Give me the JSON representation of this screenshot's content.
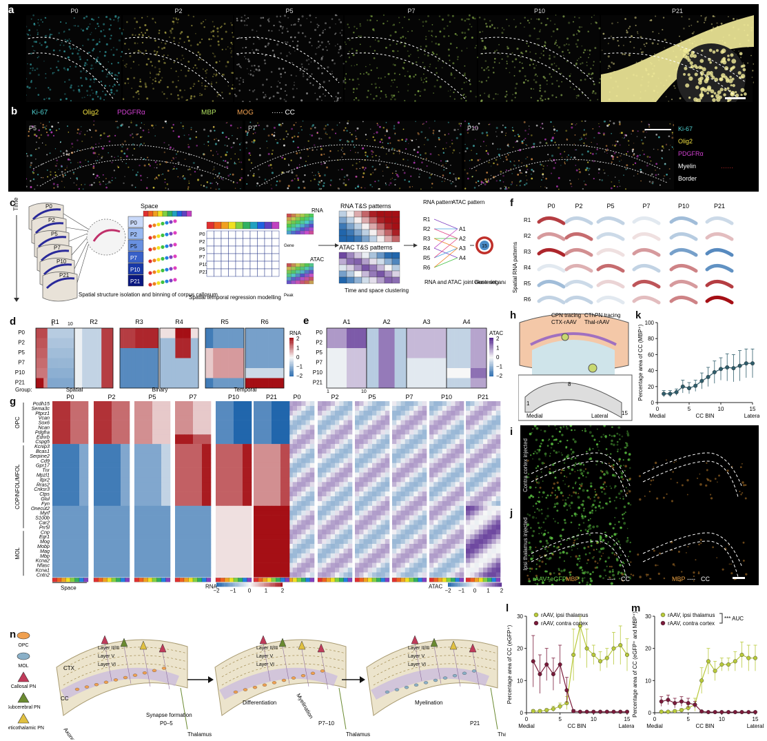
{
  "panels": {
    "a": {
      "label": "a",
      "stages": [
        "P0",
        "P2",
        "P5",
        "P7",
        "P10",
        "P21"
      ]
    },
    "b": {
      "label": "b",
      "legend_top": [
        {
          "text": "Ki-67",
          "color": "#4fd0d0"
        },
        {
          "text": "Olig2",
          "color": "#f0e040"
        },
        {
          "text": "PDGFRα",
          "color": "#d040d0"
        },
        {
          "text": "MBP",
          "color": "#b0e060"
        },
        {
          "text": "MOG",
          "color": "#f0a050"
        },
        {
          "text": "CC",
          "color": "#ffffff"
        }
      ],
      "stages": [
        "P5",
        "P7",
        "P10"
      ],
      "legend_side": [
        {
          "text": "Ki-67",
          "color": "#4fd0d0"
        },
        {
          "text": "Olig2",
          "color": "#f0e040"
        },
        {
          "text": "PDGFRα",
          "color": "#d040d0"
        },
        {
          "text": "Myelin",
          "color": "#ffffff"
        },
        {
          "text": "Border",
          "color": "#ffffff"
        }
      ]
    },
    "c": {
      "label": "c",
      "time_label": "Time",
      "space_label": "Space",
      "stages": [
        "P0",
        "P2",
        "P5",
        "P7",
        "P10",
        "P21"
      ],
      "step1": "Spatial structure isolation and binning of corpus callosum",
      "step2": "Spatial temporal regression modelling",
      "rna": "RNA",
      "atac": "ATAC",
      "time_small": "Time",
      "space_small": "Space",
      "gene": "Gene",
      "peak": "Peak",
      "rna_ts": "RNA T&S patterns",
      "atac_ts": "ATAC T&S patterns",
      "step3": "Time and space clustering",
      "rna_pattern": "RNA pattern",
      "atac_pattern": "ATAC pattern",
      "r_patterns": [
        "R1",
        "R2",
        "R3",
        "R4",
        "R5",
        "R6"
      ],
      "a_patterns": [
        "A1",
        "A2",
        "A3",
        "A4"
      ],
      "step4": "RNA and ATAC joint clustering",
      "step5": "Gene set analysis",
      "center_num": "15"
    },
    "d": {
      "label": "d",
      "patterns": [
        "R1",
        "R2",
        "R3",
        "R4",
        "R5",
        "R6"
      ],
      "rows": [
        "P0",
        "P2",
        "P5",
        "P7",
        "P10",
        "P21"
      ],
      "axis_start": "1",
      "axis_end": "10",
      "groups": [
        "Group:",
        "Spatial",
        "Binary",
        "Temporal"
      ],
      "colorbar_title": "RNA",
      "colorbar_ticks": [
        "2",
        "1",
        "0",
        "−1",
        "−2"
      ]
    },
    "e": {
      "label": "e",
      "patterns": [
        "A1",
        "A2",
        "A3",
        "A4"
      ],
      "rows": [
        "P0",
        "P2",
        "P5",
        "P7",
        "P10",
        "P21"
      ],
      "axis_start": "1",
      "axis_end": "10",
      "colorbar_title": "ATAC",
      "colorbar_ticks": [
        "2",
        "1",
        "0",
        "−1",
        "−2"
      ]
    },
    "f": {
      "label": "f",
      "ylabel": "Spatial RNA patterns",
      "cols": [
        "P0",
        "P2",
        "P5",
        "P7",
        "P10",
        "P21"
      ],
      "rows": [
        "R1",
        "R2",
        "R3",
        "R4",
        "R5",
        "R6"
      ]
    },
    "g": {
      "label": "g",
      "stages": [
        "P0",
        "P2",
        "P5",
        "P7",
        "P10",
        "P21"
      ],
      "genes": [
        "Pcdh15",
        "Sema3c",
        "Ptprz1",
        "Vcan",
        "Sox6",
        "Ncan",
        "Pdgfra",
        "Ednrb",
        "Cspg5",
        "Kcnip3",
        "Bcas1",
        "Serpine2",
        "Cd9",
        "Gpr17",
        "Tnr",
        "Mpzl1",
        "Itpr2",
        "Rras2",
        "Cnksr3",
        "Ctps",
        "Glul",
        "Fyn",
        "Onecut2",
        "Myrf",
        "S100b",
        "Car2",
        "Prr5l",
        "Cnp",
        "Egr1",
        "Mog",
        "Mobp",
        "Mag",
        "Mbp",
        "Kcna2",
        "Nfasc",
        "Kcna1",
        "Cntn2"
      ],
      "groups": [
        "OPC",
        "COP/NFOL/MFOL",
        "MOL"
      ],
      "space_label": "Space",
      "rna_bar_title": "RNA",
      "rna_bar_ticks": [
        "−2",
        "−1",
        "0",
        "1",
        "2"
      ],
      "atac_bar_title": "ATAC",
      "atac_bar_ticks": [
        "−2",
        "−1",
        "0",
        "1",
        "2"
      ]
    },
    "h": {
      "label": "h",
      "cpn": "CPN tracing",
      "cpn_virus": "CTX-rAAV",
      "cthpn": "CThPN tracing",
      "cthpn_virus": "Thal-rAAV",
      "bin_labels": [
        "1",
        "8",
        "15"
      ],
      "medial": "Medial",
      "lateral": "Lateral"
    },
    "k": {
      "label": "k"
    },
    "i": {
      "label": "i",
      "side": "Contra cortex injected"
    },
    "j": {
      "label": "j",
      "side": "Ipsi thalamus injected",
      "leg1": "rAAV–eGFP",
      "leg2": "MBP",
      "leg3": "CC",
      "leg4": "MBP",
      "leg5": "CC"
    },
    "l": {
      "label": "l"
    },
    "m": {
      "label": "m",
      "auc": "*** AUC"
    },
    "n": {
      "label": "n",
      "legend": [
        "OPC",
        "MOL",
        "Callosal PN",
        "Subcerebral PN",
        "Corticothalamic PN"
      ],
      "ctx": "CTX",
      "cc": "CC",
      "layers": [
        "Layer II/III",
        "Layer V",
        "Layer VI"
      ],
      "axonogenesis": "Axonogenesis",
      "p05": "P0–5",
      "synapse": "Synapse formation",
      "thalamus": "Thalamus",
      "differentiation": "Differentiation",
      "myelination": "Myelination",
      "p710": "P7–10",
      "p21": "P21"
    }
  },
  "chart_data": [
    {
      "type": "line",
      "panel": "k",
      "ylabel": "Percentage area of CC (MBP⁺)",
      "xlabel": "CC BIN",
      "xticklabels_extra": [
        "Medial",
        "Lateral"
      ],
      "xlim": [
        0,
        15
      ],
      "ylim": [
        0,
        100
      ],
      "xticks": [
        0,
        5,
        10,
        15
      ],
      "yticks": [
        0,
        20,
        40,
        60,
        80,
        100
      ],
      "x": [
        1,
        2,
        3,
        4,
        5,
        6,
        7,
        8,
        9,
        10,
        11,
        12,
        13,
        14,
        15
      ],
      "series": [
        {
          "values": [
            11,
            11,
            13,
            20,
            18,
            21,
            27,
            32,
            38,
            42,
            44,
            43,
            46,
            49,
            49
          ],
          "errors": [
            4,
            4,
            4,
            8,
            7,
            7,
            10,
            12,
            14,
            14,
            17,
            17,
            19,
            18,
            18
          ],
          "color": "#2f5d6b"
        }
      ]
    },
    {
      "type": "line",
      "panel": "l",
      "ylabel": "Percentage area of CC (eGFP⁺)",
      "xlabel": "CC BIN",
      "xticklabels_extra": [
        "Medial",
        "Lateral"
      ],
      "xlim": [
        0,
        15
      ],
      "ylim": [
        0,
        30
      ],
      "xticks": [
        0,
        5,
        10,
        15
      ],
      "yticks": [
        0,
        10,
        20,
        30
      ],
      "x": [
        1,
        2,
        3,
        4,
        5,
        6,
        7,
        8,
        9,
        10,
        11,
        12,
        13,
        14,
        15
      ],
      "series": [
        {
          "name": "rAAV, ipsi thalamus",
          "color": "#b8c93a",
          "values": [
            0.5,
            0.5,
            0.8,
            1.2,
            2,
            3,
            18,
            27,
            20,
            18,
            16,
            17,
            20,
            21,
            18
          ],
          "errors": [
            0.5,
            0.5,
            0.5,
            0.8,
            1,
            2,
            8,
            10,
            6,
            3,
            3,
            3,
            5,
            6,
            5
          ]
        },
        {
          "name": "rAAV, contra cortex",
          "color": "#7a1a3a",
          "values": [
            16,
            12,
            15,
            12,
            15,
            7,
            0.5,
            0.3,
            0.3,
            0.3,
            0.3,
            0.3,
            0.3,
            0.3,
            0.3
          ],
          "errors": [
            8,
            6,
            5,
            5,
            6,
            4,
            0.5,
            0.3,
            0.3,
            0.3,
            0.3,
            0.3,
            0.3,
            0.3,
            0.3
          ]
        }
      ]
    },
    {
      "type": "line",
      "panel": "m",
      "ylabel": "Percentage area of CC (eGFP⁺ and MBP⁺)",
      "xlabel": "CC BIN",
      "xticklabels_extra": [
        "Medial",
        "Lateral"
      ],
      "xlim": [
        0,
        15
      ],
      "ylim": [
        0,
        30
      ],
      "xticks": [
        0,
        5,
        10,
        15
      ],
      "yticks": [
        0,
        10,
        20,
        30
      ],
      "x": [
        1,
        2,
        3,
        4,
        5,
        6,
        7,
        8,
        9,
        10,
        11,
        12,
        13,
        14,
        15
      ],
      "series": [
        {
          "name": "rAAV, ipsi thalamus",
          "color": "#b8c93a",
          "values": [
            0.3,
            0.3,
            0.5,
            0.8,
            1.5,
            2.5,
            10,
            16,
            13,
            15,
            15,
            16,
            18,
            17,
            17
          ],
          "errors": [
            0.3,
            0.3,
            0.4,
            0.5,
            1,
            2,
            4,
            4,
            3,
            2,
            2,
            3,
            4,
            4,
            4
          ]
        },
        {
          "name": "rAAV, contra cortex",
          "color": "#7a1a3a",
          "values": [
            3.5,
            4,
            3,
            3.5,
            3,
            2.5,
            0.4,
            0.2,
            0.2,
            0.2,
            0.2,
            0.2,
            0.2,
            0.2,
            0.2
          ],
          "errors": [
            1.5,
            1.5,
            1.5,
            1.5,
            1.5,
            1,
            0.3,
            0.2,
            0.2,
            0.2,
            0.2,
            0.2,
            0.2,
            0.2,
            0.2
          ]
        }
      ]
    }
  ]
}
